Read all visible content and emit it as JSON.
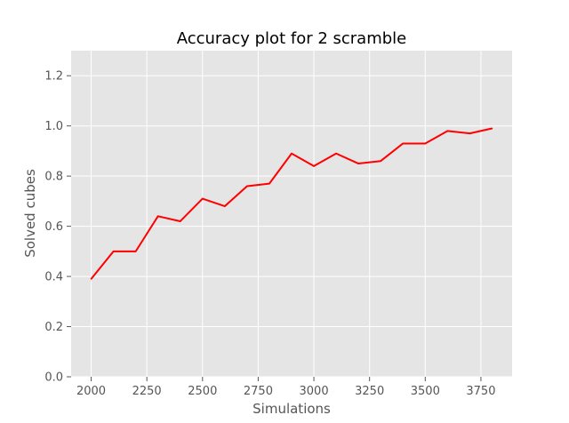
{
  "chart_data": {
    "type": "line",
    "title": "Accuracy plot for 2 scramble",
    "xlabel": "Simulations",
    "ylabel": "Solved cubes",
    "xlim": [
      1910,
      3890
    ],
    "ylim": [
      0,
      1.3
    ],
    "xticks": [
      2000,
      2250,
      2500,
      2750,
      3000,
      3250,
      3500,
      3750
    ],
    "yticks": [
      0.0,
      0.2,
      0.4,
      0.6,
      0.8,
      1.0,
      1.2
    ],
    "xtick_labels": [
      "2000",
      "2250",
      "2500",
      "2750",
      "3000",
      "3250",
      "3500",
      "3750"
    ],
    "ytick_labels": [
      "0.0",
      "0.2",
      "0.4",
      "0.6",
      "0.8",
      "1.0",
      "1.2"
    ],
    "grid": true,
    "series": [
      {
        "color": "#ff0000",
        "x": [
          2000,
          2100,
          2200,
          2300,
          2400,
          2500,
          2600,
          2700,
          2800,
          2900,
          3000,
          3100,
          3200,
          3300,
          3400,
          3500,
          3600,
          3700,
          3800
        ],
        "values": [
          0.39,
          0.5,
          0.5,
          0.64,
          0.62,
          0.71,
          0.68,
          0.76,
          0.77,
          0.89,
          0.84,
          0.89,
          0.85,
          0.86,
          0.93,
          0.93,
          0.98,
          0.97,
          0.99
        ]
      }
    ]
  }
}
